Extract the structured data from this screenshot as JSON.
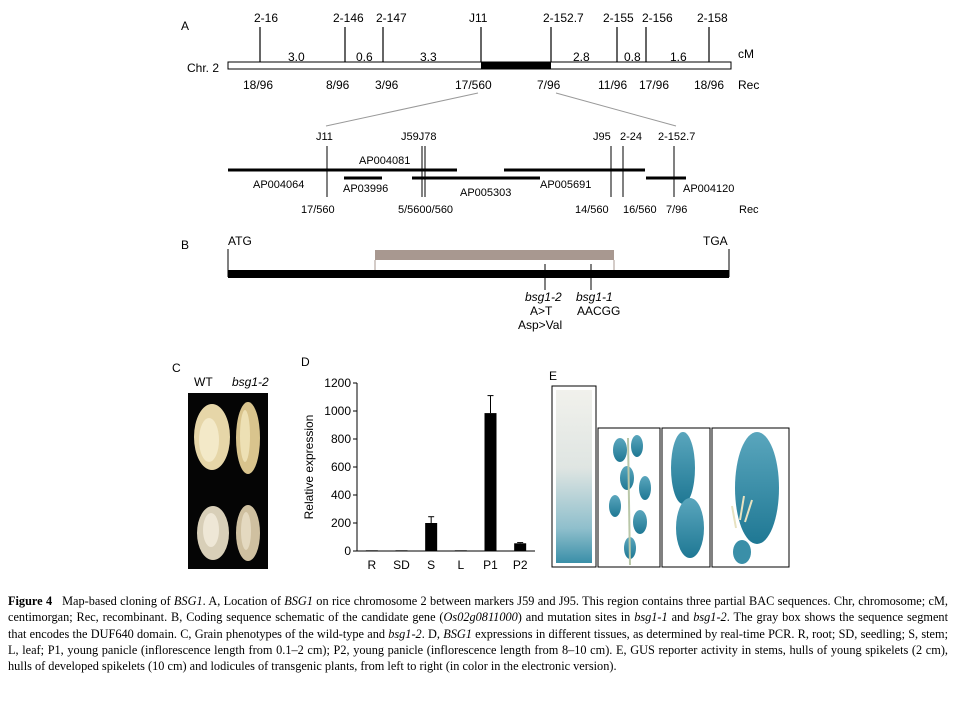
{
  "panelA": {
    "label": "A",
    "markers": [
      "2-16",
      "2-146",
      "2-147",
      "J11",
      "2-152.7",
      "2-155",
      "2-156",
      "2-158"
    ],
    "distances": [
      "3.0",
      "0.6",
      "3.3",
      "2.8",
      "0.8",
      "1.6"
    ],
    "unit": "cM",
    "chr_label": "Chr. 2",
    "rec_values": [
      "18/96",
      "8/96",
      "3/96",
      "17/560",
      "7/96",
      "11/96",
      "17/96",
      "18/96"
    ],
    "rec_label": "Rec",
    "fine_markers": [
      "J11",
      "J59J78",
      "J95",
      "2-24",
      "2-152.7"
    ],
    "bacs": [
      "AP004081",
      "AP004064",
      "AP03996",
      "AP005303",
      "AP005691",
      "AP004120"
    ],
    "fine_rec": [
      "17/560",
      "5/5600/560",
      "14/560",
      "16/560",
      "7/96"
    ],
    "fine_rec_label": "Rec"
  },
  "panelB": {
    "label": "B",
    "start": "ATG",
    "stop": "TGA",
    "mut2_name": "bsg1-2",
    "mut2_change": "A>T",
    "mut2_aa": "Asp>Val",
    "mut1_name": "bsg1-1",
    "mut1_change": "AACGG"
  },
  "panelC": {
    "label": "C",
    "wt": "WT",
    "mutant": "bsg1-2"
  },
  "panelD": {
    "label": "D",
    "chart_data": {
      "type": "bar",
      "categories": [
        "R",
        "SD",
        "S",
        "L",
        "P1",
        "P2"
      ],
      "values": [
        5,
        5,
        200,
        5,
        985,
        55
      ],
      "errors": [
        0,
        0,
        45,
        0,
        125,
        5
      ],
      "ylabel": "Relative expression",
      "ylim": [
        0,
        1200
      ],
      "yticks": [
        "0",
        "200",
        "400",
        "600",
        "800",
        "1000",
        "1200"
      ]
    }
  },
  "panelE": {
    "label": "E"
  },
  "caption": {
    "figure_label": "Figure 4",
    "segments": [
      {
        "t": "Map-based cloning of ",
        "s": "n"
      },
      {
        "t": "BSG1",
        "s": "i"
      },
      {
        "t": ". A, Location of ",
        "s": "n"
      },
      {
        "t": "BSG1",
        "s": "i"
      },
      {
        "t": " on rice chromosome 2 between markers J59 and J95. This region contains three partial BAC sequences. Chr, chromosome; cM, centimorgan; Rec, recombinant. B, Coding sequence schematic of the candidate gene (",
        "s": "n"
      },
      {
        "t": "Os02g0811000",
        "s": "i"
      },
      {
        "t": ") and mutation sites in ",
        "s": "n"
      },
      {
        "t": "bsg1-1",
        "s": "i"
      },
      {
        "t": " and ",
        "s": "n"
      },
      {
        "t": "bsg1-2",
        "s": "i"
      },
      {
        "t": ". The gray box shows the sequence segment that encodes the DUF640 domain. C, Grain phenotypes of the wild-type and ",
        "s": "n"
      },
      {
        "t": "bsg1-2",
        "s": "i"
      },
      {
        "t": ". D, ",
        "s": "n"
      },
      {
        "t": "BSG1",
        "s": "i"
      },
      {
        "t": " expressions in different tissues, as determined by real-time PCR. R, root; SD, seedling; S, stem; L, leaf; P1, young panicle (inflorescence length from 0.1–2 cm); P2, young panicle (inflorescence length from 8–10 cm). E, GUS reporter activity in stems, hulls of young spikelets (2 cm), hulls of developed spikelets (10 cm) and lodicules of transgenic plants, from left to right (in color in the electronic version).",
        "s": "n"
      }
    ]
  },
  "colors": {
    "domain_box": "#a89890",
    "gus_blue": "#3a8fa8",
    "grain": "#e6d6a8"
  }
}
